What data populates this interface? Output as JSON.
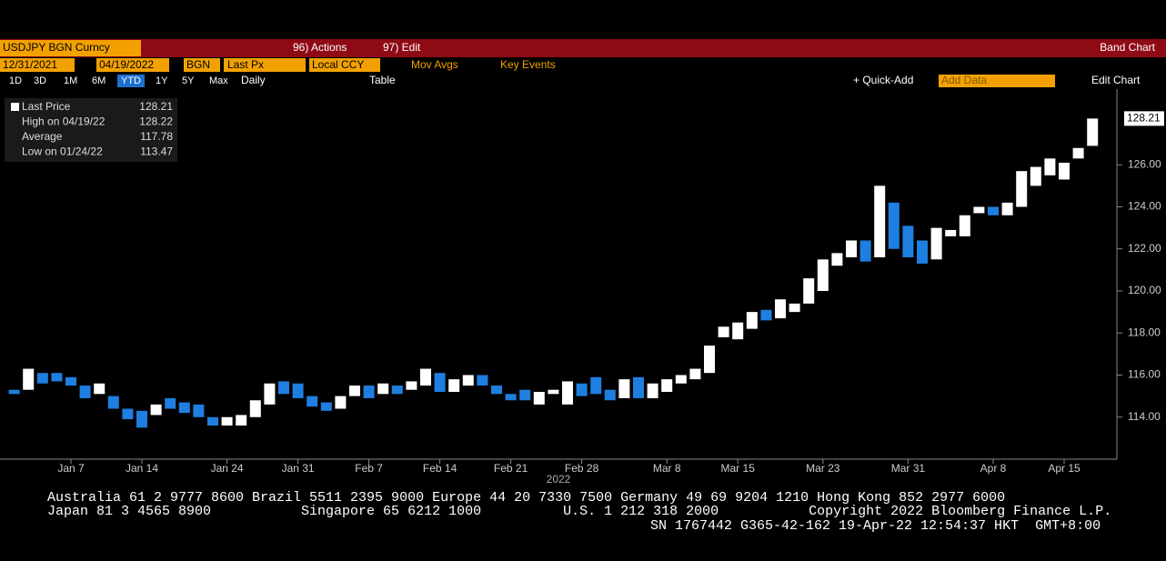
{
  "toolbar": {
    "security": "USDJPY BGN Curncy",
    "actions": "96) Actions",
    "edit": "97) Edit",
    "view": "Band Chart",
    "start": "12/31/2021",
    "end": "04/19/2022",
    "source": "BGN",
    "field": "Last Px",
    "currency": "Local CCY",
    "mov_avgs": "Mov Avgs",
    "key_events": "Key Events",
    "periods": [
      "1D",
      "3D",
      "1M",
      "6M",
      "YTD",
      "1Y",
      "5Y",
      "Max"
    ],
    "frequency": "Daily",
    "table": "Table",
    "quick_add": "+ Quick-Add",
    "add_data": "Add Data",
    "edit_chart": "Edit Chart"
  },
  "legend": {
    "rows": [
      [
        "Last Price",
        "128.21"
      ],
      [
        "High on 04/19/22",
        "128.22"
      ],
      [
        "Average",
        "117.78"
      ],
      [
        "Low on 01/24/22",
        "113.47"
      ]
    ]
  },
  "footer": {
    "lines": [
      "Australia 61 2 9777 8600 Brazil 5511 2395 9000 Europe 44 20 7330 7500 Germany 49 69 9204 1210 Hong Kong 852 2977 6000",
      "Japan 81 3 4565 8900           Singapore 65 6212 1000          U.S. 1 212 318 2000           Copyright 2022 Bloomberg Finance L.P.",
      "SN 1767442 G365-42-162 19-Apr-22 12:54:37 HKT  GMT+8:00"
    ]
  },
  "chart_data": {
    "type": "band",
    "x_label": "2022",
    "up_color": "#ffffff",
    "down_color": "#1e7fe0",
    "categories": [
      null,
      null,
      null,
      null,
      "Jan 7",
      null,
      null,
      null,
      null,
      "Jan 14",
      null,
      null,
      null,
      null,
      null,
      "Jan 24",
      null,
      null,
      null,
      null,
      "Jan 31",
      null,
      null,
      null,
      null,
      "Feb 7",
      null,
      null,
      null,
      null,
      "Feb 14",
      null,
      null,
      null,
      null,
      "Feb 21",
      null,
      null,
      null,
      null,
      "Feb 28",
      null,
      null,
      null,
      null,
      null,
      "Mar 8",
      null,
      null,
      null,
      null,
      "Mar 15",
      null,
      null,
      null,
      null,
      null,
      "Mar 23",
      null,
      null,
      null,
      null,
      null,
      "Mar 31",
      null,
      null,
      null,
      null,
      null,
      "Apr 8",
      null,
      null,
      null,
      null,
      "Apr 15",
      null,
      null
    ],
    "open": [
      115.3,
      115.3,
      116.1,
      116.1,
      115.9,
      115.5,
      115.1,
      115.0,
      114.4,
      114.3,
      114.1,
      114.9,
      114.7,
      114.6,
      114.0,
      113.6,
      113.6,
      114.0,
      114.6,
      115.7,
      115.6,
      115.0,
      114.7,
      114.4,
      115.0,
      115.5,
      115.1,
      115.5,
      115.3,
      115.5,
      116.1,
      115.2,
      115.5,
      116.0,
      115.5,
      115.1,
      115.3,
      114.6,
      115.1,
      114.6,
      115.6,
      115.9,
      115.3,
      114.9,
      115.9,
      114.9,
      115.2,
      115.6,
      115.8,
      116.1,
      117.8,
      117.7,
      118.2,
      119.1,
      118.7,
      119.0,
      119.4,
      120.0,
      121.2,
      121.6,
      122.4,
      121.6,
      124.2,
      123.1,
      122.4,
      121.5,
      122.6,
      122.6,
      123.7,
      124.0,
      123.6,
      124.0,
      125.0,
      125.5,
      125.3,
      126.3,
      126.9
    ],
    "close": [
      115.1,
      116.3,
      115.6,
      115.7,
      115.5,
      114.9,
      115.6,
      114.4,
      113.9,
      113.5,
      114.6,
      114.4,
      114.2,
      114.0,
      113.6,
      114.0,
      114.1,
      114.8,
      115.6,
      115.1,
      114.9,
      114.5,
      114.3,
      115.0,
      115.5,
      114.9,
      115.6,
      115.1,
      115.7,
      116.3,
      115.2,
      115.8,
      116.0,
      115.5,
      115.1,
      114.8,
      114.8,
      115.2,
      115.3,
      115.7,
      115.0,
      115.1,
      114.8,
      115.8,
      114.9,
      115.6,
      115.8,
      116.0,
      116.3,
      117.4,
      118.3,
      118.5,
      119.0,
      118.6,
      119.6,
      119.4,
      120.6,
      121.5,
      121.8,
      122.4,
      121.4,
      125.0,
      122.0,
      121.6,
      121.3,
      123.0,
      122.9,
      123.6,
      124.0,
      123.6,
      124.2,
      125.7,
      125.9,
      126.3,
      126.1,
      126.8,
      128.2
    ],
    "ylim": [
      112,
      129.6
    ],
    "yticks": [
      {
        "value": 114,
        "label": "114.00"
      },
      {
        "value": 116,
        "label": "116.00"
      },
      {
        "value": 118,
        "label": "118.00"
      },
      {
        "value": 120,
        "label": "120.00"
      },
      {
        "value": 122,
        "label": "122.00"
      },
      {
        "value": 124,
        "label": "124.00"
      },
      {
        "value": 126,
        "label": "126.00"
      }
    ]
  }
}
